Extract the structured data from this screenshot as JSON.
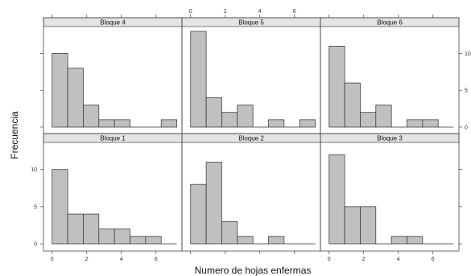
{
  "chart_data": {
    "type": "bar",
    "xlabel": "Numero de hojas enfermas",
    "ylabel": "Frecuencia",
    "x_ticks": [
      0,
      2,
      4,
      6
    ],
    "y_ticks": [
      0,
      5,
      10
    ],
    "xlim": [
      -0.5,
      7.5
    ],
    "ylim": [
      0,
      13
    ],
    "bin_width": 0.9,
    "bar_color": "#c0c0c0",
    "strip_color": "#e4e4e4",
    "panels": [
      {
        "title": "Bloque 4",
        "bins": [
          0,
          0.9,
          1.8,
          2.7,
          3.6,
          4.5,
          5.4,
          6.3
        ],
        "values": [
          10,
          8,
          3,
          1,
          1,
          0,
          0,
          1
        ]
      },
      {
        "title": "Bloque 5",
        "bins": [
          0,
          0.9,
          1.8,
          2.7,
          3.6,
          4.5,
          5.4,
          6.3
        ],
        "values": [
          13,
          4,
          2,
          3,
          0,
          1,
          0,
          1
        ]
      },
      {
        "title": "Bloque 6",
        "bins": [
          0,
          0.9,
          1.8,
          2.7,
          3.6,
          4.5,
          5.4,
          6.3
        ],
        "values": [
          11,
          6,
          2,
          3,
          0,
          1,
          1,
          0
        ]
      },
      {
        "title": "Bloque 1",
        "bins": [
          0,
          0.9,
          1.8,
          2.7,
          3.6,
          4.5,
          5.4,
          6.3
        ],
        "values": [
          10,
          4,
          4,
          2,
          2,
          1,
          1,
          0
        ]
      },
      {
        "title": "Bloque 2",
        "bins": [
          0,
          0.9,
          1.8,
          2.7,
          3.6,
          4.5,
          5.4,
          6.3
        ],
        "values": [
          8,
          11,
          3,
          1,
          0,
          1,
          0,
          0
        ]
      },
      {
        "title": "Bloque 3",
        "bins": [
          0,
          0.9,
          1.8,
          2.7,
          3.6,
          4.5,
          5.4,
          6.3
        ],
        "values": [
          12,
          5,
          5,
          0,
          1,
          1,
          0,
          0
        ]
      }
    ]
  }
}
